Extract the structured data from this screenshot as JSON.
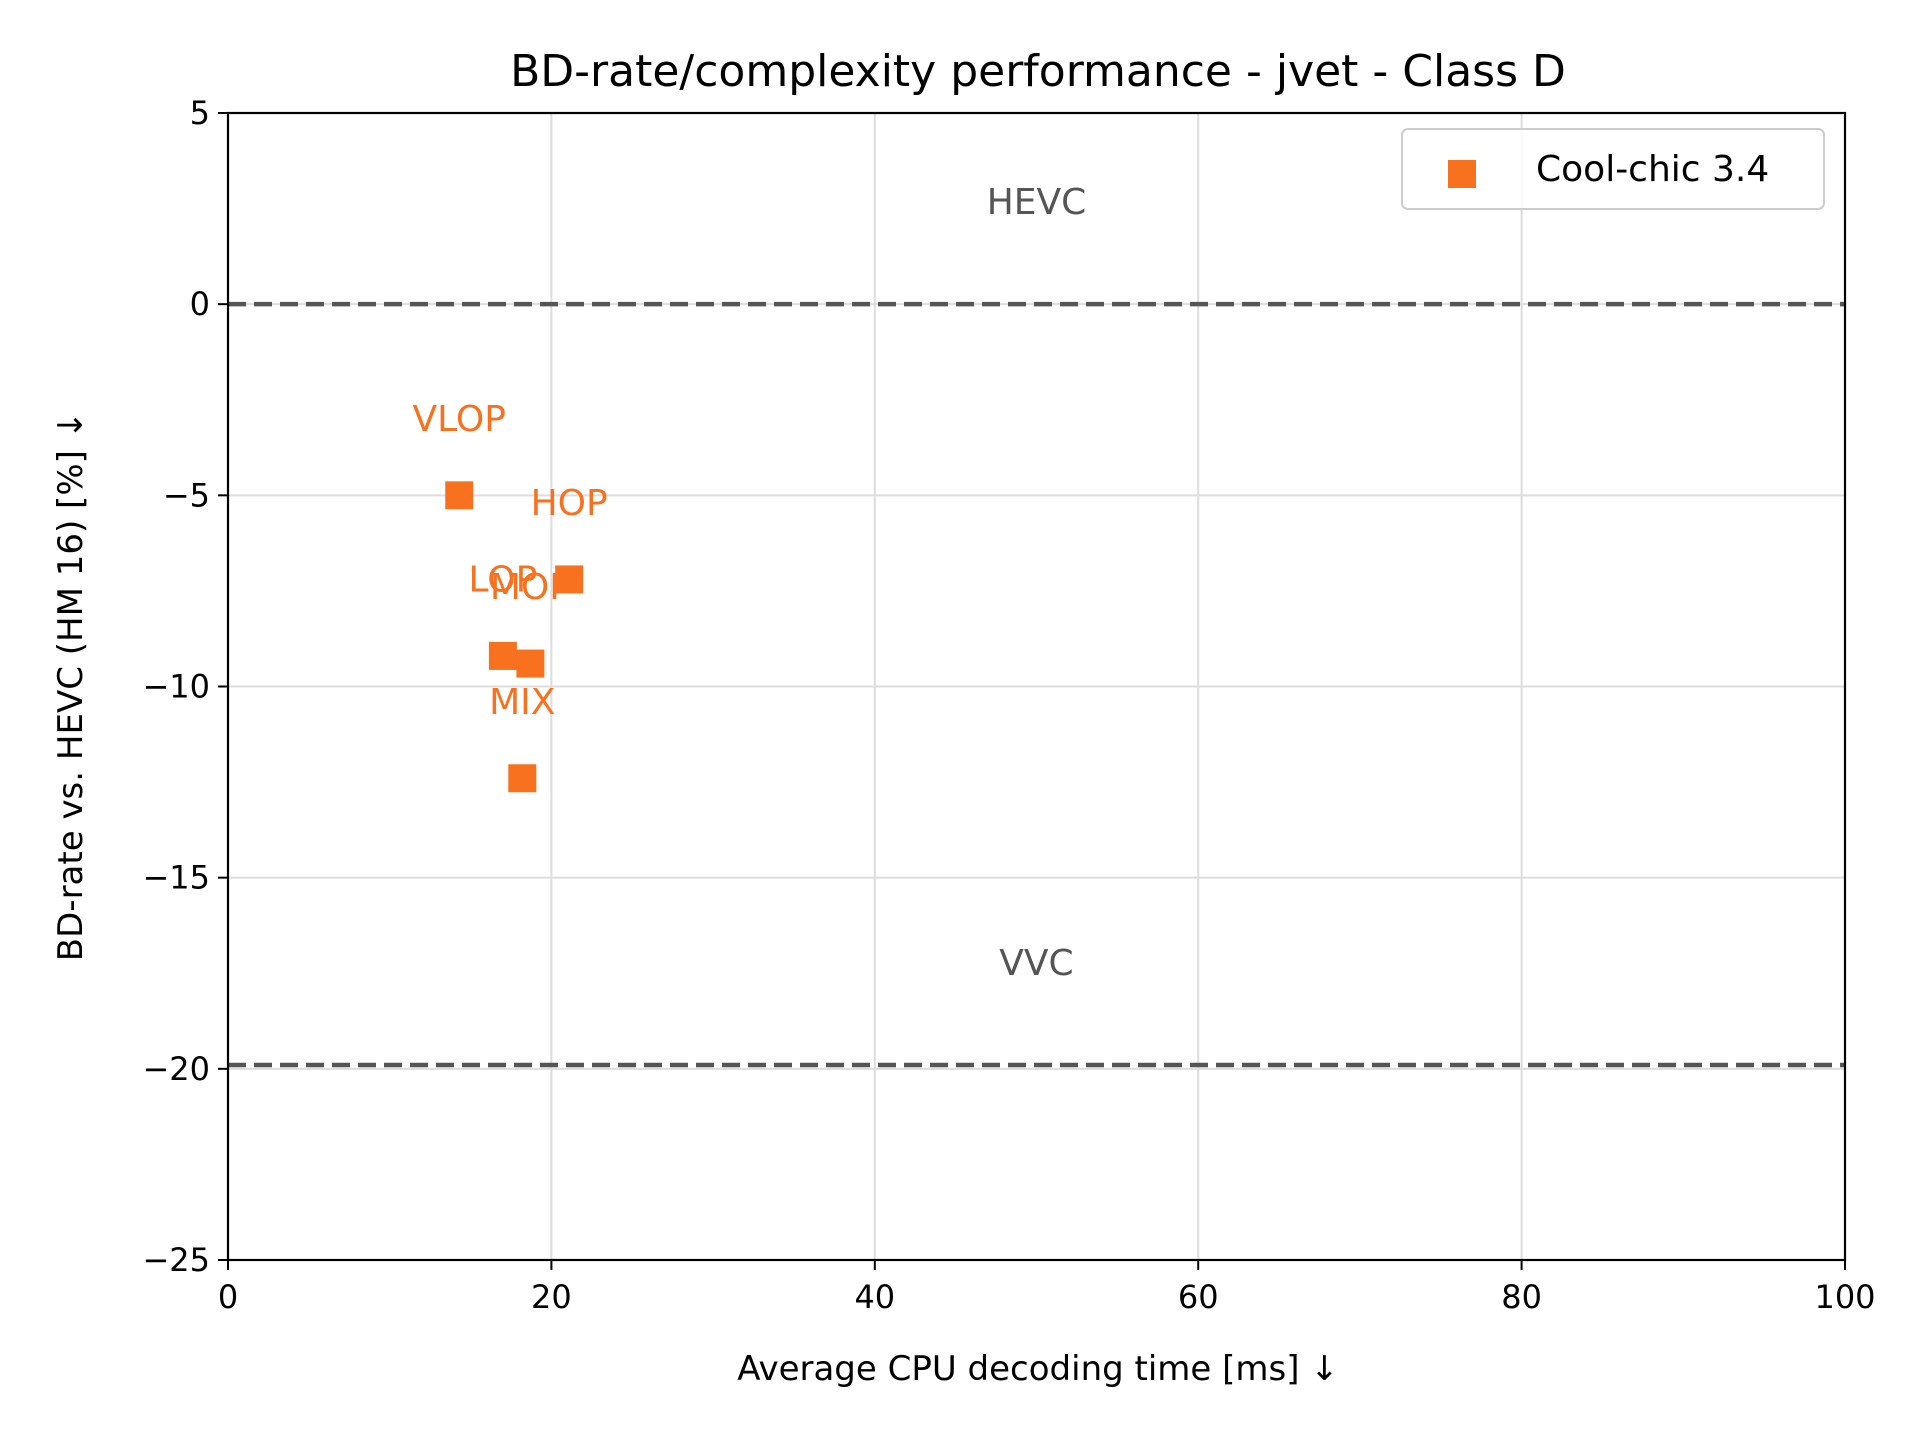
{
  "chart_data": {
    "type": "scatter",
    "title": "BD-rate/complexity performance - jvet - Class D",
    "xlabel": "Average CPU decoding time [ms]  ↓",
    "ylabel": "BD-rate vs. HEVC (HM 16) [%]  ↓",
    "xlim": [
      0,
      100
    ],
    "ylim": [
      -25,
      5
    ],
    "xticks": [
      0,
      20,
      40,
      60,
      80,
      100
    ],
    "yticks": [
      5,
      0,
      -5,
      -10,
      -15,
      -20,
      -25
    ],
    "ytick_labels": [
      "5",
      "0",
      "−5",
      "−10",
      "−15",
      "−20",
      "−25"
    ],
    "grid": true,
    "legend_position": "top-right",
    "series": [
      {
        "name": "Cool-chic 3.4",
        "color": "#f7711f",
        "marker": "square",
        "points": [
          {
            "label": "VLOP",
            "x": 14.3,
            "y": -5.0
          },
          {
            "label": "HOP",
            "x": 21.1,
            "y": -7.2
          },
          {
            "label": "LOP",
            "x": 17.0,
            "y": -9.2
          },
          {
            "label": "MOP",
            "x": 18.7,
            "y": -9.4
          },
          {
            "label": "MIX",
            "x": 18.2,
            "y": -12.4
          }
        ]
      }
    ],
    "reference_lines": [
      {
        "label": "HEVC",
        "y": 0,
        "color": "#555555"
      },
      {
        "label": "VVC",
        "y": -19.9,
        "color": "#555555"
      }
    ]
  }
}
